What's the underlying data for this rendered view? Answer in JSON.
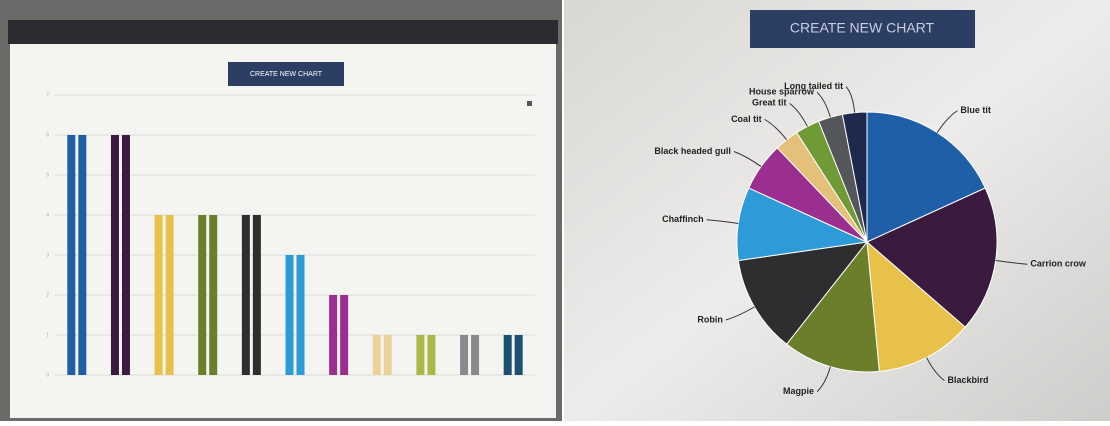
{
  "chart_data": [
    {
      "type": "bar",
      "button": "CREATE NEW CHART",
      "categories": [
        null,
        null,
        null,
        null,
        null,
        null,
        null,
        null,
        null,
        null,
        null
      ],
      "series": [
        {
          "values": [
            6,
            6,
            4,
            4,
            4,
            3,
            2,
            1,
            1,
            1,
            1
          ]
        },
        {
          "values": [
            6,
            6,
            4,
            4,
            4,
            3,
            2,
            1,
            1,
            1,
            1
          ]
        }
      ],
      "colors": [
        "#1f5fa8",
        "#3a1a3e",
        "#e8c14a",
        "#6b7f2a",
        "#2e2e30",
        "#2d9bd8",
        "#9b2f8f",
        "#ecd29a",
        "#a9b846",
        "#8a8a8e",
        "#1d4f6e"
      ],
      "ylim": [
        0,
        7
      ],
      "yticks": [
        0,
        1,
        2,
        3,
        4,
        5,
        6,
        7
      ],
      "grid": true
    },
    {
      "type": "pie",
      "button": "CREATE NEW CHART",
      "categories": [
        "Blue tit",
        "Carrion crow",
        "Blackbird",
        "Magpie",
        "Robin",
        "Chaffinch",
        "Black headed gull",
        "Coal tit",
        "Great tit",
        "House sparrow",
        "Long tailed tit"
      ],
      "values": [
        6,
        6,
        4,
        4,
        4,
        3,
        2,
        1,
        1,
        1,
        1
      ],
      "colors": [
        "#1f5fa8",
        "#3a1a3e",
        "#e8c14a",
        "#6b7f2a",
        "#2e2e30",
        "#2d9bd8",
        "#9b2f8f",
        "#e5c07a",
        "#6f9a35",
        "#55565a",
        "#1d2a4d"
      ]
    }
  ]
}
